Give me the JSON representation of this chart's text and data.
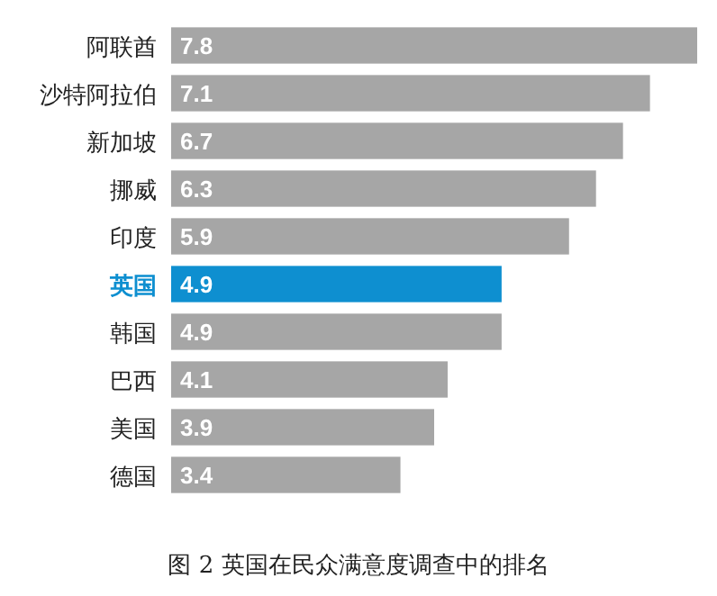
{
  "chart_data": {
    "type": "bar",
    "orientation": "horizontal",
    "title": "图 2 英国在民众满意度调查中的排名",
    "categories": [
      "阿联酋",
      "沙特阿拉伯",
      "新加坡",
      "挪威",
      "印度",
      "英国",
      "韩国",
      "巴西",
      "美国",
      "德国"
    ],
    "values": [
      7.8,
      7.1,
      6.7,
      6.3,
      5.9,
      4.9,
      4.9,
      4.1,
      3.9,
      3.4
    ],
    "colors": [
      "#a6a6a6",
      "#a6a6a6",
      "#a6a6a6",
      "#a6a6a6",
      "#a6a6a6",
      "#0e8fd0",
      "#a6a6a6",
      "#a6a6a6",
      "#a6a6a6",
      "#a6a6a6"
    ],
    "data_labels": true
  }
}
